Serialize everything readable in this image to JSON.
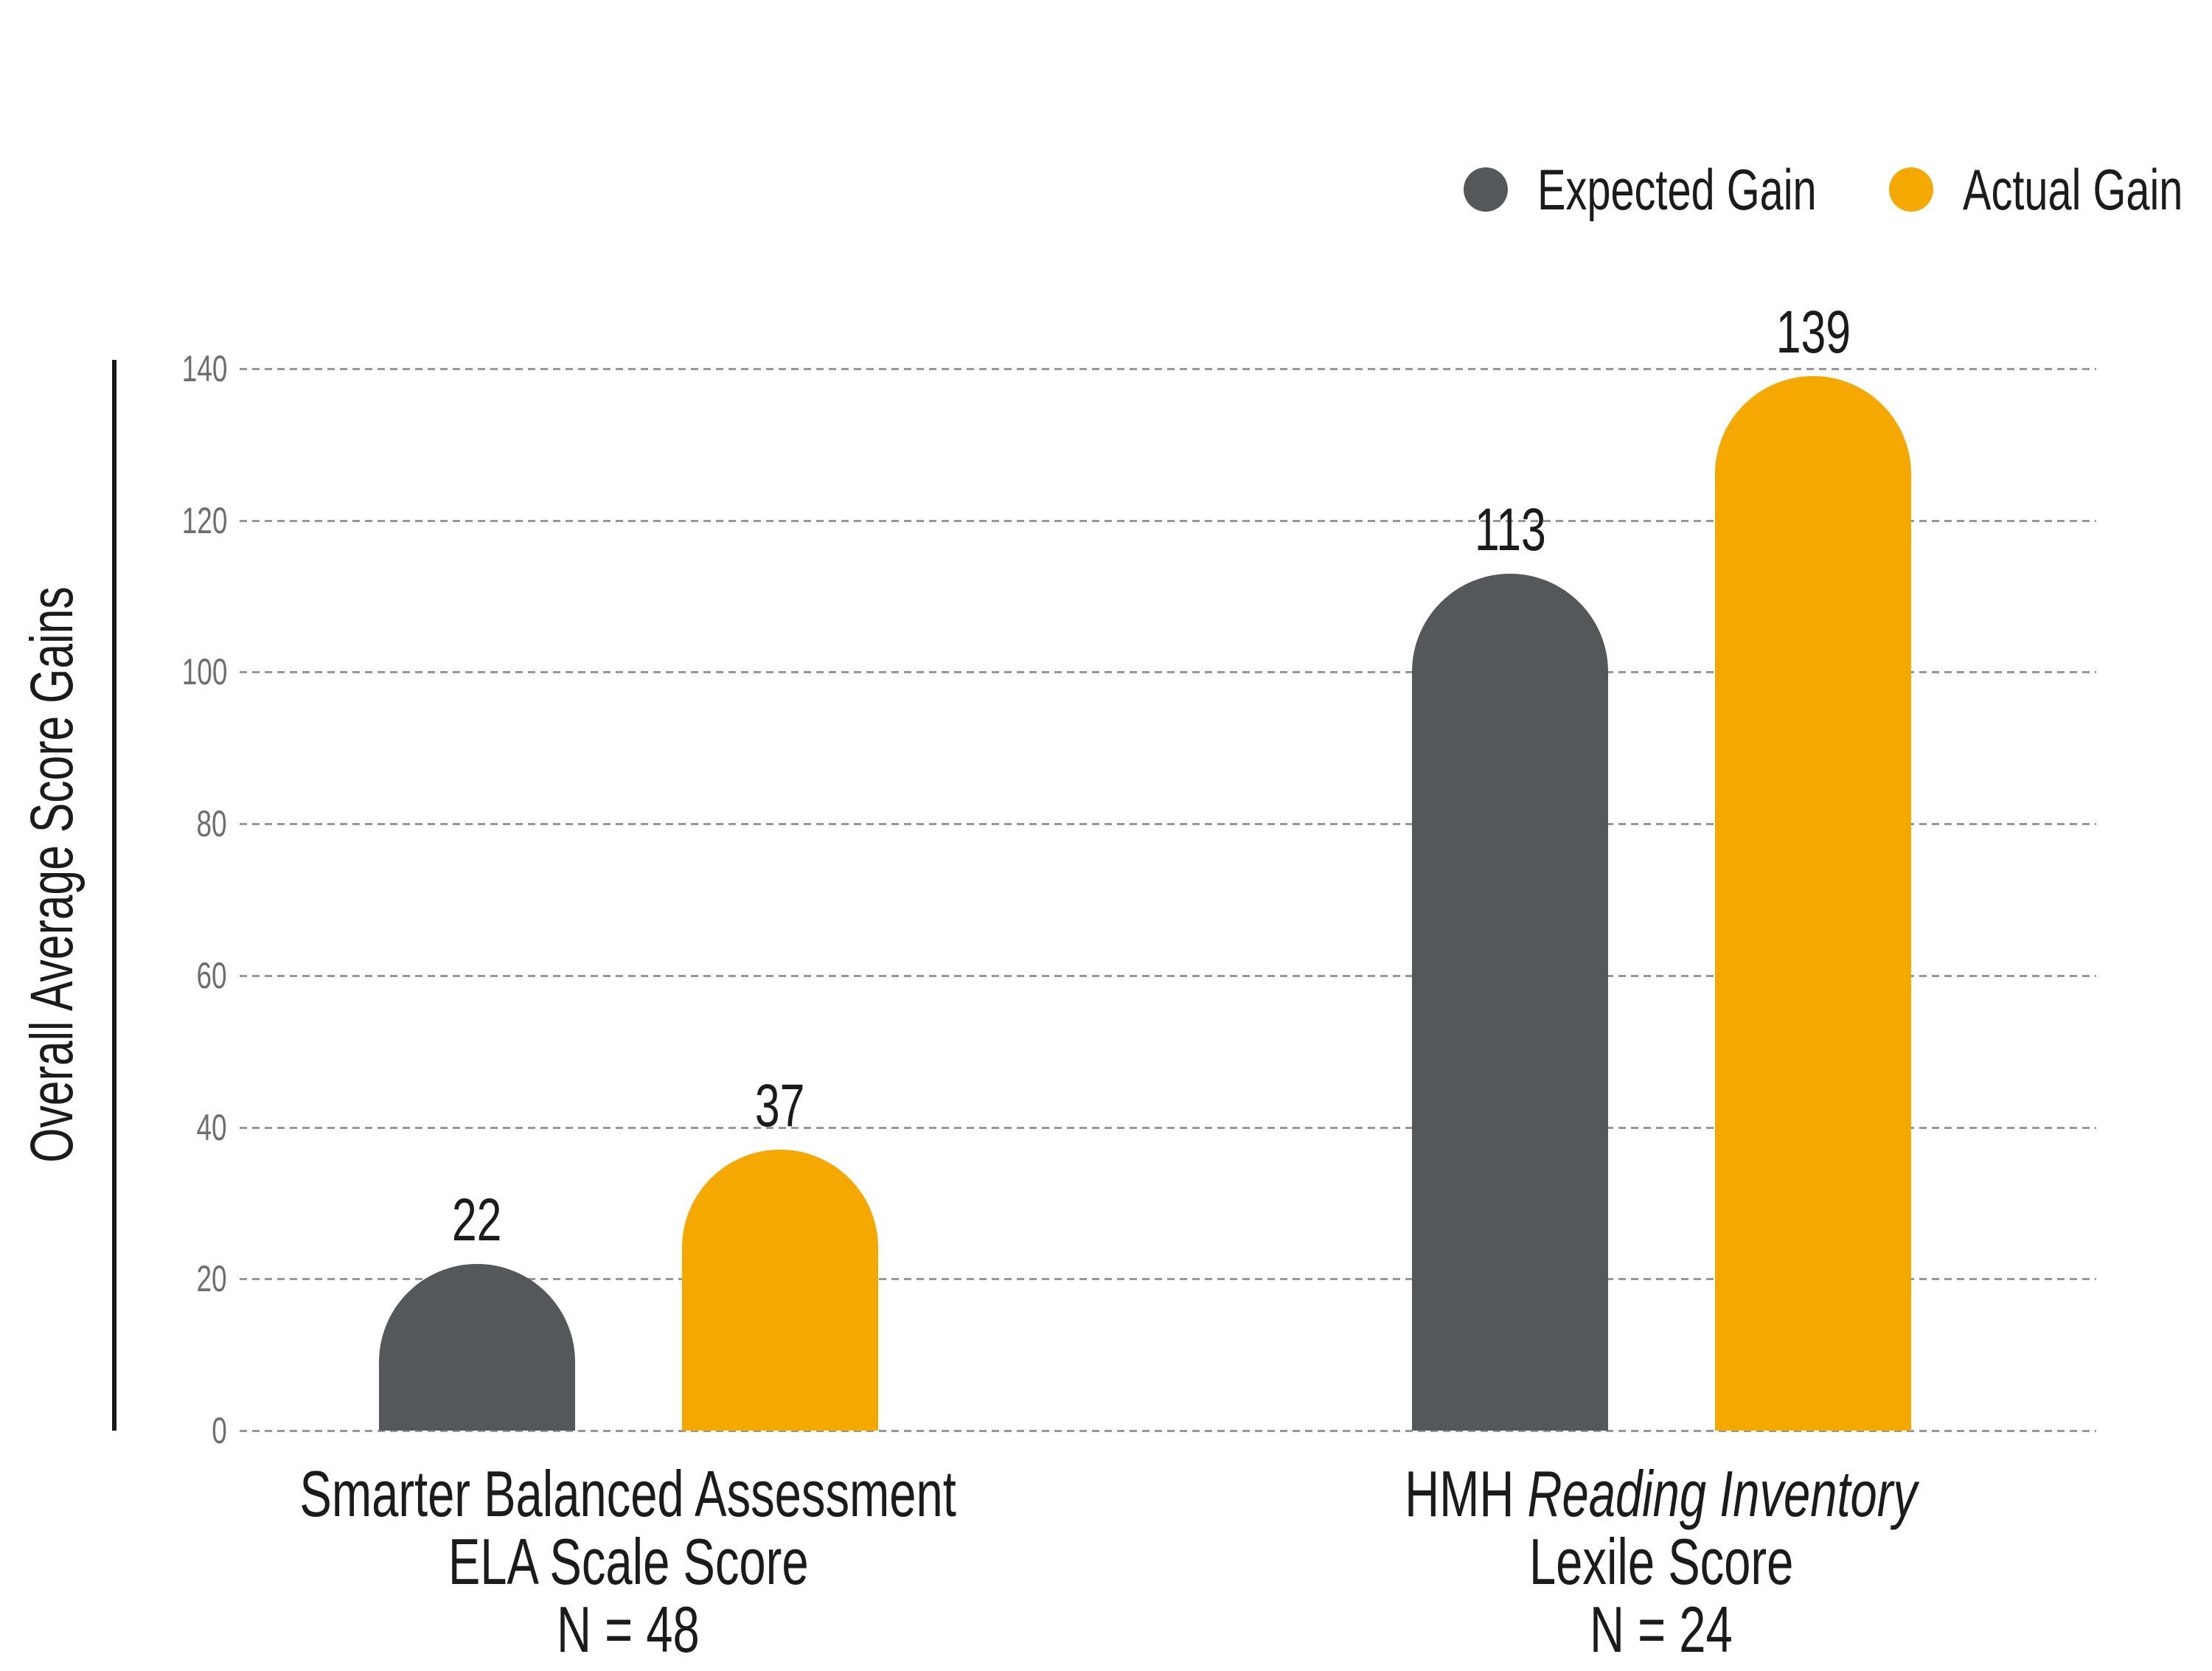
{
  "chart_data": {
    "type": "bar",
    "ylabel": "Overall Average Score Gains",
    "ylim": [
      0,
      140
    ],
    "yticks": [
      0,
      20,
      40,
      60,
      80,
      100,
      120,
      140
    ],
    "grid": "horizontal-dashed",
    "legend_position": "top-right",
    "series": [
      {
        "name": "Expected Gain",
        "color": "#55585B"
      },
      {
        "name": "Actual Gain",
        "color": "#F4A800"
      }
    ],
    "groups": [
      {
        "category_lines": [
          [
            {
              "text": "Smarter Balanced Assessment",
              "italic": false
            }
          ],
          [
            {
              "text": "ELA Scale Score",
              "italic": false
            }
          ],
          [
            {
              "text": "N = 48",
              "italic": false
            }
          ]
        ],
        "values": [
          22,
          37
        ]
      },
      {
        "category_lines": [
          [
            {
              "text": "HMH ",
              "italic": false
            },
            {
              "text": "Reading Inventory",
              "italic": true
            }
          ],
          [
            {
              "text": "Lexile Score",
              "italic": false
            }
          ],
          [
            {
              "text": "N = 24",
              "italic": false
            }
          ]
        ],
        "values": [
          113,
          139
        ]
      }
    ]
  }
}
